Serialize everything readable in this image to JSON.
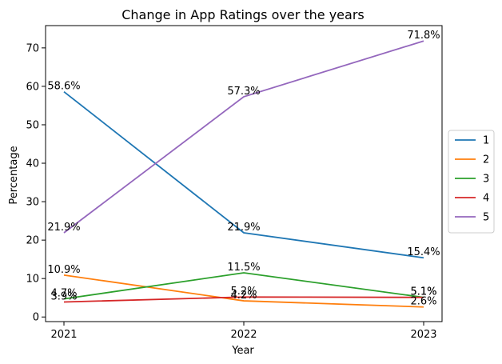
{
  "chart_data": {
    "type": "line",
    "title": "Change in App Ratings over the years",
    "xlabel": "Year",
    "ylabel": "Percentage",
    "categories": [
      "2021",
      "2022",
      "2023"
    ],
    "ylim": [
      -1.2,
      75.8
    ],
    "yticks": [
      0,
      10,
      20,
      30,
      40,
      50,
      60,
      70
    ],
    "grid": false,
    "legend_position": "right",
    "series": [
      {
        "name": "1",
        "color": "#1f77b4",
        "values": [
          58.6,
          21.9,
          15.4
        ],
        "labels": [
          "58.6%",
          "21.9%",
          "15.4%"
        ]
      },
      {
        "name": "2",
        "color": "#ff7f0e",
        "values": [
          10.9,
          4.2,
          2.6
        ],
        "labels": [
          "10.9%",
          "4.2%",
          "2.6%"
        ]
      },
      {
        "name": "3",
        "color": "#2ca02c",
        "values": [
          4.7,
          11.5,
          5.1
        ],
        "labels": [
          "4.7%",
          "11.5%",
          "5.1%"
        ]
      },
      {
        "name": "4",
        "color": "#d62728",
        "values": [
          3.9,
          5.2,
          5.1
        ],
        "labels": [
          "3.9%",
          "5.2%",
          "5.1%"
        ]
      },
      {
        "name": "5",
        "color": "#9467bd",
        "values": [
          21.9,
          57.3,
          71.8
        ],
        "labels": [
          "21.9%",
          "57.3%",
          "71.8%"
        ]
      }
    ]
  }
}
